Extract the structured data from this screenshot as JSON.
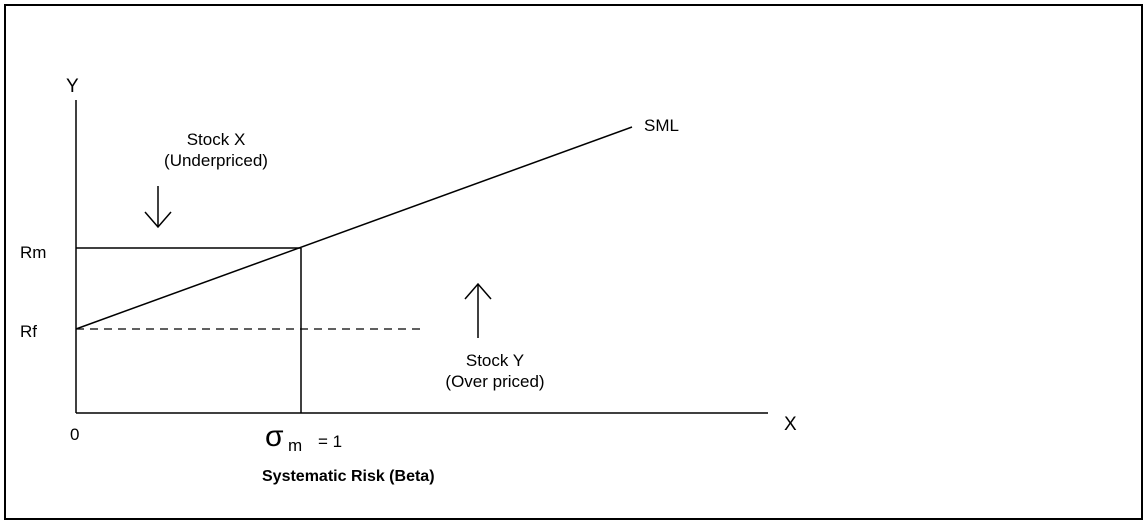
{
  "diagram": {
    "y_axis_label": "Y",
    "x_axis_label": "X",
    "origin_label": "0",
    "rm_label": "Rm",
    "rf_label": "Rf",
    "sml_label": "SML",
    "stock_x": {
      "name": "Stock X",
      "note": "(Underpriced)"
    },
    "stock_y": {
      "name": "Stock Y",
      "note": "(Over priced)"
    },
    "beta_symbol": "σ",
    "beta_subscript": "m",
    "beta_value": "= 1",
    "x_axis_title": "Systematic Risk (Beta)"
  }
}
